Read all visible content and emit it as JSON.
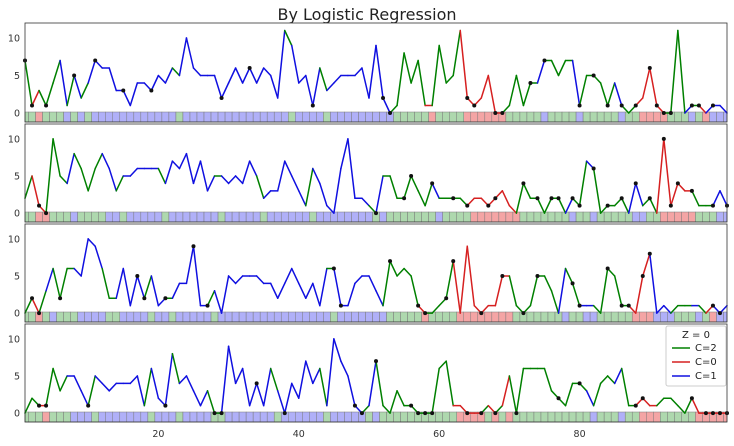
{
  "chart_data": {
    "type": "line",
    "title": "By Logistic Regression",
    "xlim": [
      1,
      101
    ],
    "ylim": [
      -1.2,
      12
    ],
    "x_ticks": [
      20,
      40,
      60,
      80
    ],
    "y_ticks": [
      0,
      5,
      10
    ],
    "legend": {
      "title": "Z = 0",
      "placement": "right",
      "entries": [
        {
          "label": "C=2",
          "color": "#008000"
        },
        {
          "label": "C=0",
          "color": "#d62020"
        },
        {
          "label": "C=1",
          "color": "#1010e0"
        }
      ]
    },
    "state_colors": {
      "0": {
        "line": "#d62020",
        "band": "#f4a5a5"
      },
      "1": {
        "line": "#1010e0",
        "band": "#b0b0f8"
      },
      "2": {
        "line": "#008000",
        "band": "#aed8ae"
      }
    },
    "panels": [
      {
        "values": [
          7,
          1,
          3,
          1,
          4,
          7,
          1,
          5,
          2,
          4,
          7,
          6,
          6,
          3,
          3,
          1,
          4,
          4,
          3,
          5,
          4,
          6,
          5,
          10,
          6,
          5,
          5,
          5,
          2,
          4,
          6,
          4,
          6,
          4,
          6,
          5,
          2,
          11,
          9,
          4,
          5,
          1,
          6,
          3,
          4,
          5,
          5,
          5,
          6,
          2,
          9,
          2,
          0,
          1,
          8,
          4,
          7,
          1,
          1,
          9,
          4,
          5,
          11,
          2,
          1,
          2,
          5,
          0,
          0,
          1,
          5,
          1,
          4,
          4,
          7,
          7,
          5,
          7,
          7,
          1,
          5,
          5,
          4,
          1,
          4,
          1,
          0,
          1,
          2,
          6,
          1,
          0,
          0,
          11,
          0,
          1,
          1,
          0,
          1,
          1,
          0
        ],
        "states": [
          2,
          2,
          0,
          2,
          2,
          2,
          1,
          2,
          1,
          2,
          1,
          1,
          1,
          1,
          1,
          1,
          1,
          1,
          1,
          1,
          1,
          1,
          2,
          1,
          1,
          1,
          1,
          1,
          1,
          1,
          1,
          1,
          1,
          1,
          1,
          1,
          1,
          1,
          2,
          1,
          1,
          1,
          1,
          2,
          1,
          1,
          1,
          1,
          1,
          1,
          1,
          1,
          1,
          2,
          2,
          2,
          2,
          2,
          0,
          2,
          2,
          2,
          2,
          0,
          0,
          0,
          0,
          0,
          0,
          2,
          2,
          2,
          2,
          2,
          1,
          2,
          2,
          2,
          2,
          1,
          2,
          2,
          2,
          2,
          2,
          1,
          2,
          2,
          0,
          0,
          0,
          0,
          2,
          2,
          2,
          1,
          2,
          0,
          1,
          1,
          1
        ],
        "dots": [
          1,
          2,
          4,
          8,
          11,
          15,
          19,
          29,
          33,
          42,
          52,
          53,
          64,
          65,
          68,
          69,
          73,
          75,
          80,
          82,
          84,
          86,
          88,
          90,
          91,
          92,
          93,
          96,
          97,
          99
        ]
      },
      {
        "values": [
          2,
          5,
          1,
          0,
          10,
          5,
          4,
          8,
          6,
          3,
          6,
          8,
          6,
          3,
          5,
          5,
          6,
          6,
          6,
          6,
          4,
          7,
          6,
          8,
          4,
          7,
          3,
          5,
          5,
          4,
          5,
          4,
          7,
          5,
          2,
          3,
          3,
          7,
          5,
          3,
          1,
          6,
          4,
          1,
          0,
          6,
          10,
          2,
          2,
          1,
          0,
          5,
          5,
          2,
          2,
          5,
          3,
          1,
          4,
          2,
          2,
          2,
          2,
          1,
          2,
          2,
          1,
          2,
          3,
          1,
          0,
          4,
          2,
          2,
          0,
          2,
          2,
          0,
          2,
          1,
          7,
          6,
          0,
          1,
          1,
          2,
          0,
          4,
          1,
          2,
          0,
          10,
          1,
          4,
          3,
          3,
          1,
          1,
          1,
          3,
          1
        ],
        "states": [
          2,
          2,
          0,
          0,
          2,
          2,
          2,
          1,
          2,
          2,
          2,
          2,
          1,
          1,
          2,
          1,
          1,
          1,
          1,
          1,
          2,
          1,
          1,
          1,
          1,
          1,
          1,
          1,
          2,
          1,
          1,
          1,
          1,
          1,
          2,
          1,
          1,
          1,
          1,
          1,
          1,
          2,
          1,
          1,
          1,
          1,
          1,
          1,
          1,
          1,
          2,
          1,
          2,
          2,
          2,
          2,
          2,
          2,
          2,
          1,
          2,
          2,
          2,
          2,
          0,
          0,
          0,
          0,
          0,
          0,
          0,
          2,
          2,
          2,
          2,
          2,
          2,
          2,
          1,
          2,
          2,
          1,
          2,
          2,
          2,
          2,
          2,
          1,
          1,
          2,
          2,
          0,
          0,
          0,
          0,
          0,
          2,
          2,
          2,
          1,
          1
        ],
        "dots": [
          3,
          4,
          51,
          55,
          56,
          59,
          62,
          64,
          67,
          68,
          72,
          74,
          76,
          77,
          79,
          80,
          82,
          84,
          86,
          88,
          90,
          92,
          93,
          94,
          96,
          99,
          101
        ]
      },
      {
        "values": [
          0,
          2,
          0,
          3,
          6,
          2,
          6,
          6,
          5,
          10,
          9,
          6,
          2,
          2,
          6,
          1,
          5,
          2,
          5,
          1,
          2,
          2,
          4,
          4,
          9,
          1,
          1,
          3,
          0,
          5,
          4,
          5,
          5,
          5,
          4,
          4,
          2,
          4,
          6,
          4,
          2,
          4,
          1,
          6,
          6,
          1,
          1,
          4,
          5,
          5,
          3,
          1,
          7,
          5,
          6,
          5,
          1,
          0,
          0,
          1,
          2,
          7,
          0,
          9,
          1,
          0,
          1,
          1,
          5,
          5,
          1,
          0,
          1,
          5,
          5,
          3,
          0,
          6,
          4,
          1,
          1,
          1,
          0,
          6,
          5,
          1,
          1,
          0,
          5,
          8,
          0,
          1,
          0,
          1,
          1,
          1,
          1,
          0,
          1,
          0,
          1
        ],
        "states": [
          2,
          2,
          0,
          2,
          1,
          2,
          2,
          2,
          1,
          1,
          1,
          1,
          2,
          2,
          1,
          1,
          1,
          1,
          2,
          1,
          1,
          2,
          1,
          1,
          1,
          1,
          1,
          2,
          1,
          1,
          1,
          1,
          1,
          1,
          1,
          1,
          1,
          1,
          1,
          1,
          1,
          1,
          1,
          1,
          2,
          1,
          1,
          1,
          1,
          1,
          1,
          1,
          2,
          2,
          2,
          2,
          2,
          0,
          2,
          2,
          2,
          2,
          0,
          0,
          0,
          0,
          0,
          0,
          0,
          0,
          2,
          2,
          2,
          2,
          2,
          2,
          2,
          1,
          2,
          2,
          1,
          1,
          2,
          2,
          2,
          2,
          2,
          0,
          0,
          0,
          1,
          1,
          1,
          2,
          2,
          2,
          1,
          2,
          0,
          1,
          1
        ],
        "dots": [
          2,
          3,
          6,
          17,
          18,
          21,
          25,
          27,
          45,
          46,
          53,
          57,
          58,
          61,
          62,
          66,
          69,
          72,
          74,
          79,
          80,
          84,
          86,
          87,
          89,
          90,
          99,
          100
        ]
      },
      {
        "values": [
          0,
          2,
          1,
          1,
          6,
          3,
          5,
          5,
          3,
          1,
          5,
          4,
          3,
          4,
          4,
          4,
          5,
          1,
          6,
          2,
          1,
          8,
          4,
          5,
          3,
          1,
          3,
          0,
          0,
          9,
          4,
          6,
          1,
          4,
          1,
          6,
          3,
          0,
          4,
          2,
          7,
          4,
          6,
          1,
          10,
          7,
          5,
          1,
          0,
          1,
          7,
          1,
          0,
          3,
          1,
          1,
          0,
          0,
          0,
          6,
          7,
          1,
          1,
          0,
          0,
          0,
          1,
          0,
          1,
          5,
          0,
          6,
          6,
          6,
          6,
          3,
          2,
          1,
          4,
          4,
          3,
          1,
          4,
          5,
          4,
          6,
          1,
          1,
          2,
          1,
          1,
          2,
          2,
          1,
          0,
          2,
          0,
          0,
          0,
          0,
          0
        ],
        "states": [
          2,
          2,
          2,
          0,
          2,
          2,
          2,
          1,
          1,
          1,
          2,
          1,
          1,
          1,
          1,
          1,
          1,
          1,
          2,
          1,
          1,
          1,
          2,
          1,
          1,
          1,
          1,
          2,
          2,
          1,
          1,
          1,
          1,
          1,
          1,
          1,
          2,
          1,
          1,
          1,
          1,
          1,
          1,
          2,
          1,
          1,
          1,
          1,
          1,
          2,
          1,
          2,
          2,
          2,
          2,
          2,
          2,
          2,
          2,
          2,
          2,
          2,
          0,
          0,
          0,
          0,
          2,
          0,
          2,
          0,
          2,
          2,
          2,
          2,
          2,
          2,
          2,
          2,
          2,
          2,
          2,
          1,
          2,
          2,
          2,
          1,
          2,
          2,
          0,
          0,
          0,
          2,
          2,
          2,
          2,
          2,
          0,
          0,
          0,
          0,
          0
        ],
        "dots": [
          3,
          4,
          10,
          21,
          28,
          29,
          34,
          38,
          48,
          49,
          51,
          56,
          57,
          58,
          59,
          64,
          66,
          68,
          71,
          77,
          80,
          88,
          89,
          96,
          98,
          99,
          100,
          101
        ]
      }
    ]
  }
}
